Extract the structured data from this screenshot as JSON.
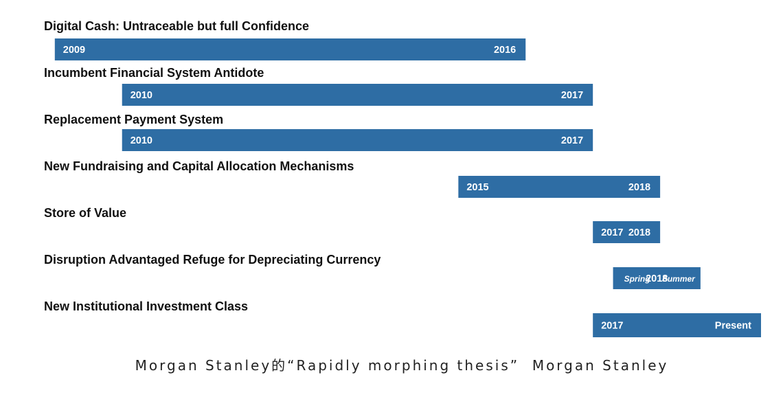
{
  "chart_data": {
    "type": "bar",
    "orientation": "horizontal-timeline",
    "bar_color": "#2e6da4",
    "time_axis": {
      "min": 2008.9,
      "max": 2019.5,
      "axis_line": false,
      "ticks": false,
      "grid": false
    },
    "legend": "none",
    "rows": [
      {
        "title": "Digital Cash: Untraceable but full Confidence",
        "start": 2009,
        "end": 2016,
        "start_label": "2009",
        "end_label": "2016"
      },
      {
        "title": "Incumbent Financial System Antidote",
        "start": 2010,
        "end": 2017,
        "start_label": "2010",
        "end_label": "2017"
      },
      {
        "title": "Replacement Payment System",
        "start": 2010,
        "end": 2017,
        "start_label": "2010",
        "end_label": "2017"
      },
      {
        "title": "New Fundraising and Capital Allocation Mechanisms",
        "start": 2015,
        "end": 2018,
        "start_label": "2015",
        "end_label": "2018"
      },
      {
        "title": "Store of Value",
        "start": 2017,
        "end": 2018,
        "start_label": "2017",
        "end_label": "2018"
      },
      {
        "title": "Disruption Advantaged Refuge for Depreciating Currency",
        "start": 2017.3,
        "end": 2018.6,
        "start_label": "Spring",
        "mid_label": "2018",
        "end_label": "Summer"
      },
      {
        "title": "New Institutional Investment Class",
        "start": 2017,
        "end": 2019.5,
        "start_label": "2017",
        "end_label": "Present"
      }
    ]
  },
  "caption": "Morgan Stanley的“Rapidly morphing thesis”  Morgan Stanley"
}
